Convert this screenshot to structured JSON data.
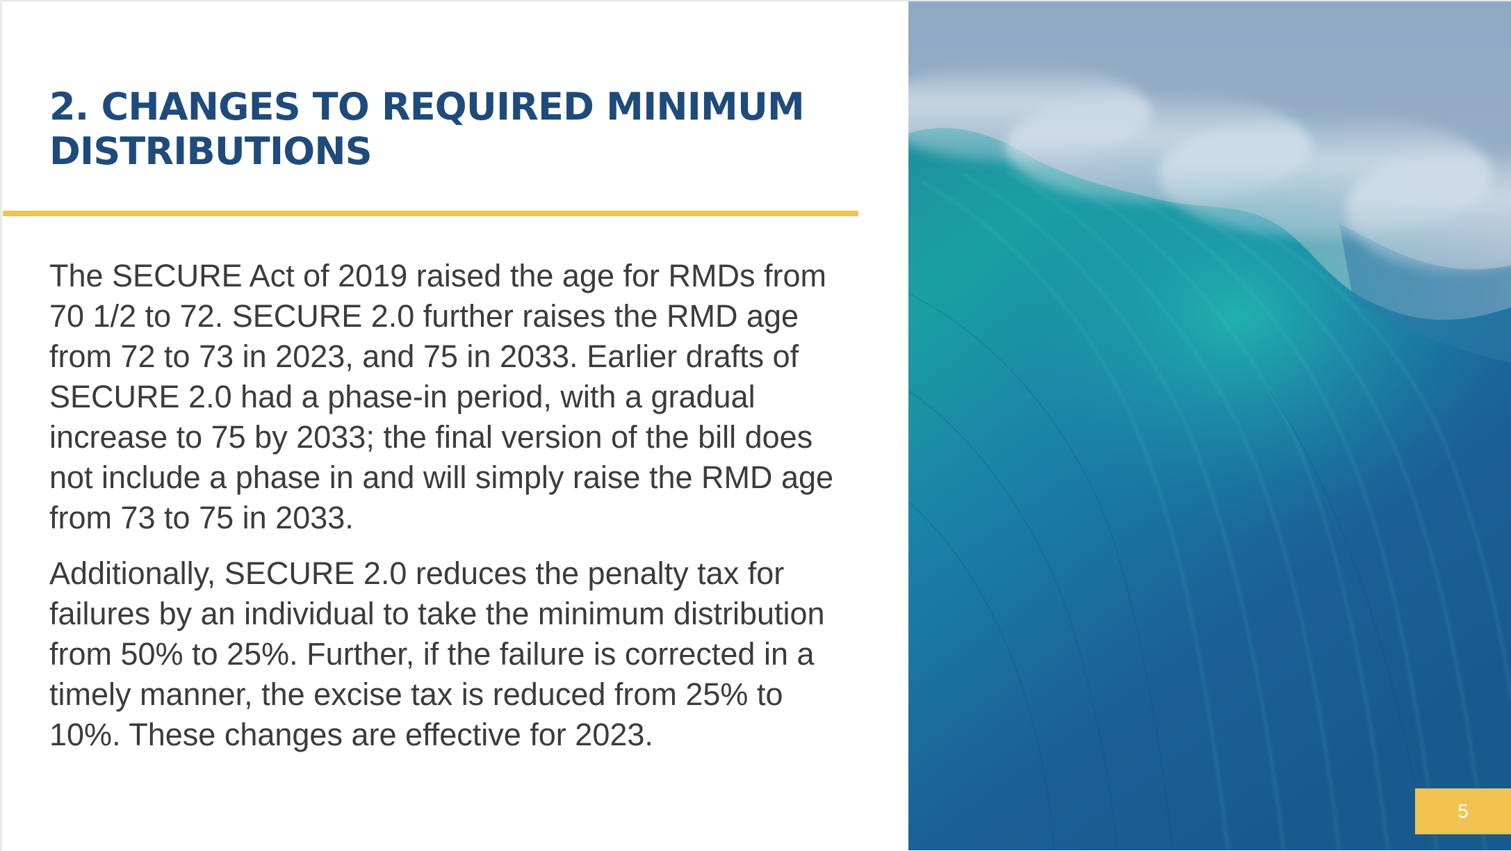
{
  "slide": {
    "title": "2. CHANGES TO REQUIRED MINIMUM DISTRIBUTIONS",
    "paragraphs": [
      "The SECURE Act of 2019 raised the age for RMDs from 70 1/2  to 72. SECURE 2.0 further raises the RMD age from 72 to 73 in 2023, and 75 in 2033. Earlier drafts of SECURE 2.0 had a phase-in period, with a gradual increase to 75 by 2033; the final version of the bill does not include a phase in and will simply raise the RMD age from 73 to 75 in 2033.",
      "Additionally, SECURE 2.0 reduces the penalty tax for failures by an individual to take the minimum distribution from 50% to 25%. Further, if the failure is corrected in a timely manner, the excise tax is reduced from 25% to 10%. These changes are effective for 2023."
    ],
    "page_number": "5"
  },
  "colors": {
    "title": "#1e4a7c",
    "accent": "#f0c24f",
    "body_text": "#3b3b3b"
  },
  "image": {
    "subject": "ocean-wave-photo"
  }
}
